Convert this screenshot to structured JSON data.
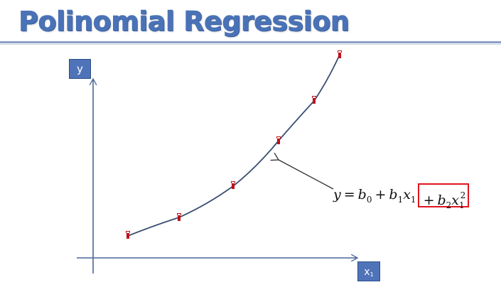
{
  "slide": {
    "title": "Polinomial Regression",
    "y_label": "y",
    "x_label_main": "x",
    "x_label_sub": "1"
  },
  "formula": {
    "lhs": "y",
    "eq": "=",
    "b0": "b",
    "b0_sub": "0",
    "plus1": "+",
    "b1": "b",
    "b1_sub": "1",
    "x1": "x",
    "x1_sub": "1",
    "plus2": "+",
    "b2": "b",
    "b2_sub": "2",
    "x2": "x",
    "x2_sub": "1",
    "x2_sup": "2"
  },
  "colors": {
    "title": "#4a72b6",
    "axis_box": "#4f73b8",
    "curve": "#3b4f73",
    "marker": "#c0101a",
    "highlight_box": "#e0151c"
  }
}
